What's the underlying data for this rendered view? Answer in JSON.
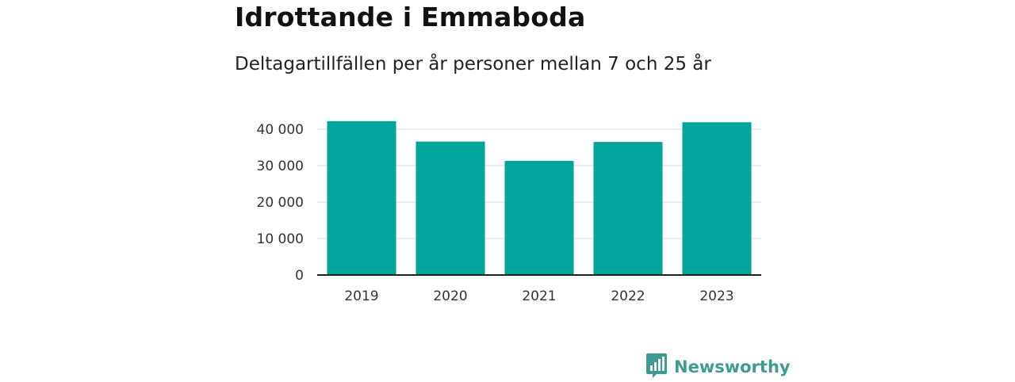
{
  "title": "Idrottande i Emmaboda",
  "subtitle": "Deltagartillfällen per år personer mellan 7 och 25 år",
  "brand": {
    "name": "Newsworthy",
    "icon": "newsworthy-logo-icon"
  },
  "colors": {
    "bar": "#00a59b",
    "grid": "#d9d9d9",
    "axis": "#222222",
    "brand": "#3d9b94"
  },
  "chart_data": {
    "type": "bar",
    "categories": [
      "2019",
      "2020",
      "2021",
      "2022",
      "2023"
    ],
    "values": [
      42200,
      36600,
      31300,
      36500,
      41900
    ],
    "yticks": [
      0,
      10000,
      20000,
      30000,
      40000
    ],
    "ytick_labels": [
      "0",
      "10 000",
      "20 000",
      "30 000",
      "40 000"
    ],
    "ylim": [
      0,
      45000
    ],
    "grid": true
  }
}
